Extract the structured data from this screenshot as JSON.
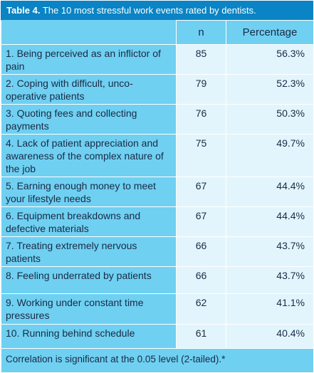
{
  "caption": {
    "label": "Table 4.",
    "text": "The 10 most stressful work events rated by dentists."
  },
  "columns": [
    "",
    "n",
    "Percentage"
  ],
  "rows": [
    {
      "event": "1. Being perceived as an inflictor of pain",
      "n": "85",
      "percentage": "56.3%"
    },
    {
      "event": "2. Coping with difficult, unco-operative patients",
      "n": "79",
      "percentage": "52.3%"
    },
    {
      "event": "3. Quoting fees and collecting payments",
      "n": "76",
      "percentage": "50.3%"
    },
    {
      "event": "4. Lack of patient appreciation and awareness of the complex nature of the job",
      "n": "75",
      "percentage": "49.7%"
    },
    {
      "event": "5. Earning enough money to meet your lifestyle needs",
      "n": "67",
      "percentage": "44.4%"
    },
    {
      "event": "6. Equipment breakdowns and defective materials",
      "n": "67",
      "percentage": "44.4%"
    },
    {
      "event": "7. Treating extremely nervous patients",
      "n": "66",
      "percentage": "43.7%"
    },
    {
      "event": "8. Feeling underrated by patients",
      "n": "66",
      "percentage": "43.7%"
    },
    {
      "event": "9. Working under constant time pressures",
      "n": "62",
      "percentage": "41.1%"
    },
    {
      "event": "10. Running behind schedule",
      "n": "61",
      "percentage": "40.4%"
    }
  ],
  "footer": "Correlation is significant at the 0.05 level (2-tailed).*"
}
